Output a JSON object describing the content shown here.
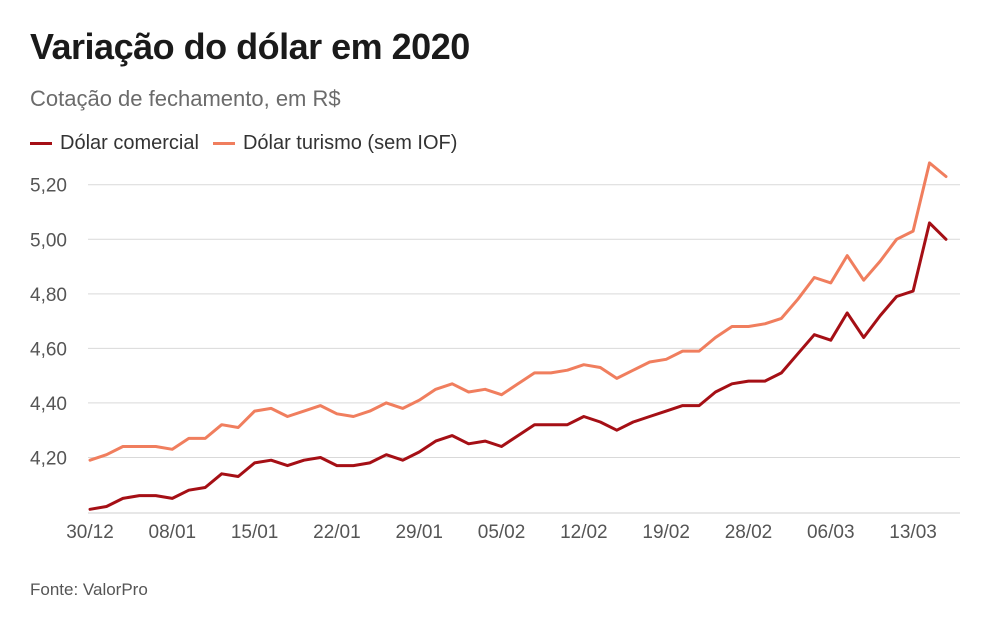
{
  "chart_data": {
    "type": "line",
    "title": "Variação do dólar em 2020",
    "subtitle": "Cotação de fechamento, em R$",
    "source": "Fonte: ValorPro",
    "ylim": [
      4.0,
      5.32
    ],
    "y_ticks": [
      "4,20",
      "4,40",
      "4,60",
      "4,80",
      "5,00",
      "5,20"
    ],
    "y_tick_values": [
      4.2,
      4.4,
      4.6,
      4.8,
      5.0,
      5.2
    ],
    "x_ticks": [
      {
        "label": "30/12",
        "index": 0
      },
      {
        "label": "08/01",
        "index": 5
      },
      {
        "label": "15/01",
        "index": 10
      },
      {
        "label": "22/01",
        "index": 15
      },
      {
        "label": "29/01",
        "index": 20
      },
      {
        "label": "05/02",
        "index": 25
      },
      {
        "label": "12/02",
        "index": 30
      },
      {
        "label": "19/02",
        "index": 35
      },
      {
        "label": "28/02",
        "index": 40
      },
      {
        "label": "06/03",
        "index": 45
      },
      {
        "label": "13/03",
        "index": 50
      }
    ],
    "grid": true,
    "legend_position": "top-left",
    "series": [
      {
        "name": "Dólar comercial",
        "color": "#a50f15",
        "values": [
          4.01,
          4.02,
          4.05,
          4.06,
          4.06,
          4.05,
          4.08,
          4.09,
          4.14,
          4.13,
          4.18,
          4.19,
          4.17,
          4.19,
          4.2,
          4.17,
          4.17,
          4.18,
          4.21,
          4.19,
          4.22,
          4.26,
          4.28,
          4.25,
          4.26,
          4.24,
          4.28,
          4.32,
          4.32,
          4.32,
          4.35,
          4.33,
          4.3,
          4.33,
          4.35,
          4.37,
          4.39,
          4.39,
          4.44,
          4.47,
          4.48,
          4.48,
          4.51,
          4.58,
          4.65,
          4.63,
          4.73,
          4.64,
          4.72,
          4.79,
          4.81,
          5.06,
          5.0
        ]
      },
      {
        "name": "Dólar turismo (sem IOF)",
        "color": "#f07e5e",
        "values": [
          4.19,
          4.21,
          4.24,
          4.24,
          4.24,
          4.23,
          4.27,
          4.27,
          4.32,
          4.31,
          4.37,
          4.38,
          4.35,
          4.37,
          4.39,
          4.36,
          4.35,
          4.37,
          4.4,
          4.38,
          4.41,
          4.45,
          4.47,
          4.44,
          4.45,
          4.43,
          4.47,
          4.51,
          4.51,
          4.52,
          4.54,
          4.53,
          4.49,
          4.52,
          4.55,
          4.56,
          4.59,
          4.59,
          4.64,
          4.68,
          4.68,
          4.69,
          4.71,
          4.78,
          4.86,
          4.84,
          4.94,
          4.85,
          4.92,
          5.0,
          5.03,
          5.28,
          5.23
        ]
      }
    ]
  }
}
